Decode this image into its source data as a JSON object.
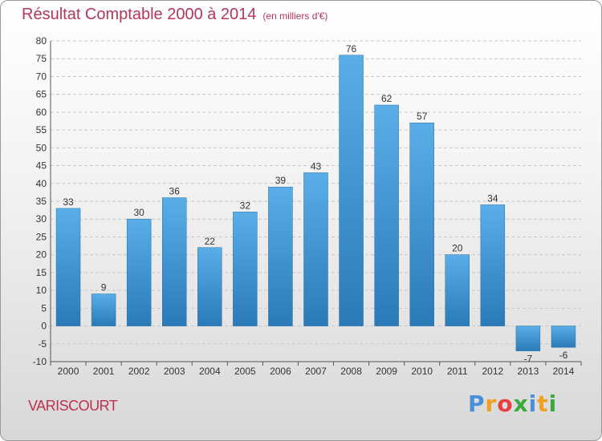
{
  "chart_data": {
    "type": "bar",
    "title": "Résultat Comptable 2000 à 2014",
    "subtitle": "(en milliers d'€)",
    "categories": [
      "2000",
      "2001",
      "2002",
      "2003",
      "2004",
      "2005",
      "2006",
      "2007",
      "2008",
      "2009",
      "2010",
      "2011",
      "2012",
      "2013",
      "2014"
    ],
    "values": [
      33,
      9,
      30,
      36,
      22,
      32,
      39,
      43,
      76,
      62,
      57,
      20,
      34,
      -7,
      -6
    ],
    "ylim": [
      -10,
      80
    ],
    "yticks": [
      -10,
      -5,
      0,
      5,
      10,
      15,
      20,
      25,
      30,
      35,
      40,
      45,
      50,
      55,
      60,
      65,
      70,
      75,
      80
    ],
    "grid": true,
    "bar_color_top": "#5aaee8",
    "bar_color_bottom": "#2a7ab8",
    "xlabel": "",
    "ylabel": ""
  },
  "location": {
    "name": "VARISCOURT"
  },
  "brand": {
    "letters": [
      "P",
      "r",
      "o",
      "x",
      "i",
      "t",
      "i"
    ],
    "colors": [
      "#4a90d9",
      "#f0a020",
      "#e84040",
      "#3aaa3a",
      "#4a90d9",
      "#f0a020",
      "#3aaa3a"
    ]
  }
}
